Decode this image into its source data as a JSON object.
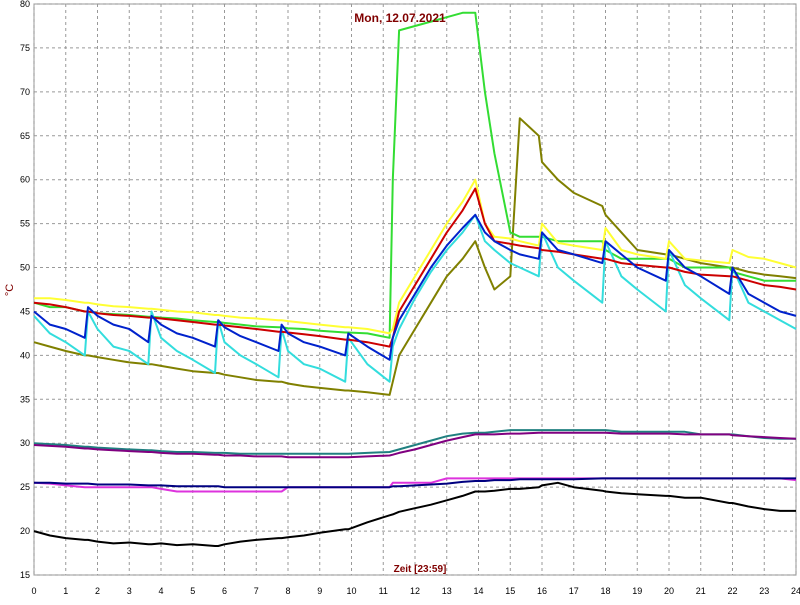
{
  "chart_data": {
    "type": "line",
    "title": "Mon, 12.07.2021",
    "y_label": "°C",
    "x_label": "Zeit [23:59]",
    "xlim": [
      0,
      24
    ],
    "ylim": [
      15,
      80
    ],
    "xticks": [
      0,
      1,
      2,
      3,
      4,
      5,
      6,
      7,
      8,
      9,
      10,
      11,
      12,
      13,
      14,
      15,
      16,
      17,
      18,
      19,
      20,
      21,
      22,
      23,
      24
    ],
    "yticks": [
      15,
      20,
      25,
      30,
      35,
      40,
      45,
      50,
      55,
      60,
      65,
      70,
      75,
      80
    ],
    "grid": true,
    "x": [
      0,
      0.5,
      1,
      1.6,
      1.7,
      2,
      2.5,
      3,
      3.6,
      3.7,
      4,
      4.5,
      5,
      5.7,
      5.8,
      6,
      6.5,
      7,
      7.7,
      7.8,
      8,
      8.5,
      9,
      9.8,
      9.9,
      10.5,
      11.2,
      11.3,
      11.5,
      12,
      12.5,
      13,
      13.5,
      13.9,
      14.2,
      14.5,
      15,
      15.3,
      15.9,
      16.0,
      16.5,
      17,
      17.9,
      18.0,
      18.5,
      19,
      19.9,
      20.0,
      20.5,
      21,
      21.9,
      22.0,
      22.5,
      23,
      23.5,
      24
    ],
    "series": [
      {
        "color": "#208080",
        "values": [
          30,
          29.9,
          29.8,
          29.6,
          29.6,
          29.5,
          29.4,
          29.3,
          29.2,
          29.2,
          29.1,
          29,
          29,
          28.9,
          28.9,
          28.9,
          28.8,
          28.8,
          28.8,
          28.8,
          28.8,
          28.8,
          28.8,
          28.8,
          28.8,
          28.9,
          29,
          29.1,
          29.3,
          29.8,
          30.3,
          30.8,
          31.1,
          31.2,
          31.2,
          31.3,
          31.5,
          31.5,
          31.5,
          31.5,
          31.5,
          31.5,
          31.5,
          31.5,
          31.3,
          31.3,
          31.3,
          31.3,
          31.3,
          31,
          31,
          31,
          30.8,
          30.6,
          30.5,
          30.5
        ]
      },
      {
        "color": "#800080",
        "values": [
          29.8,
          29.7,
          29.6,
          29.4,
          29.4,
          29.3,
          29.2,
          29.1,
          29,
          29,
          28.9,
          28.8,
          28.8,
          28.7,
          28.7,
          28.6,
          28.6,
          28.5,
          28.5,
          28.5,
          28.4,
          28.4,
          28.4,
          28.4,
          28.4,
          28.5,
          28.6,
          28.7,
          28.9,
          29.3,
          29.8,
          30.3,
          30.7,
          31,
          31,
          31,
          31.1,
          31.1,
          31.2,
          31.2,
          31.2,
          31.2,
          31.2,
          31.2,
          31.1,
          31.1,
          31.1,
          31.1,
          31,
          31,
          31,
          30.9,
          30.8,
          30.7,
          30.6,
          30.5
        ]
      },
      {
        "color": "#dd33dd",
        "values": [
          25.5,
          25.4,
          25.2,
          25,
          25,
          25,
          25,
          25,
          25,
          25,
          24.8,
          24.5,
          24.5,
          24.5,
          24.5,
          24.5,
          24.5,
          24.5,
          24.5,
          24.5,
          25,
          25,
          25,
          25,
          25,
          25,
          25,
          25.5,
          25.5,
          25.5,
          25.5,
          26,
          26,
          26,
          26,
          26,
          26,
          26,
          26,
          26,
          26,
          26,
          26,
          26,
          26,
          26,
          26,
          26,
          26,
          26,
          26,
          26,
          26,
          26,
          26,
          25.8
        ]
      },
      {
        "color": "#000080",
        "values": [
          25.5,
          25.5,
          25.4,
          25.4,
          25.4,
          25.3,
          25.3,
          25.3,
          25.2,
          25.2,
          25.2,
          25.1,
          25.1,
          25.1,
          25.1,
          25,
          25,
          25,
          25,
          25,
          25,
          25,
          25,
          25,
          25,
          25,
          25,
          25.1,
          25.1,
          25.2,
          25.3,
          25.4,
          25.6,
          25.7,
          25.7,
          25.8,
          25.8,
          25.9,
          25.9,
          25.9,
          25.9,
          25.9,
          26,
          26,
          26,
          26,
          26,
          26,
          26,
          26,
          26,
          26,
          26,
          26,
          26,
          26
        ]
      },
      {
        "color": "#000000",
        "values": [
          20,
          19.5,
          19.2,
          19,
          19,
          18.8,
          18.6,
          18.7,
          18.5,
          18.5,
          18.6,
          18.4,
          18.5,
          18.3,
          18.3,
          18.5,
          18.8,
          19,
          19.2,
          19.2,
          19.3,
          19.5,
          19.8,
          20.2,
          20.2,
          21,
          21.8,
          21.9,
          22.2,
          22.6,
          23,
          23.5,
          24,
          24.5,
          24.5,
          24.6,
          24.8,
          24.8,
          25,
          25.2,
          25.5,
          25,
          24.6,
          24.5,
          24.3,
          24.2,
          24,
          24,
          23.8,
          23.8,
          23.2,
          23.2,
          22.8,
          22.5,
          22.3,
          22.3
        ]
      },
      {
        "color": "#808000",
        "values": [
          41.5,
          41,
          40.5,
          40,
          40,
          39.8,
          39.5,
          39.2,
          39,
          39,
          38.8,
          38.5,
          38.2,
          38,
          38,
          37.8,
          37.5,
          37.2,
          37,
          37,
          36.8,
          36.5,
          36.3,
          36,
          36,
          35.8,
          35.5,
          37,
          40,
          43,
          46,
          49,
          51,
          53,
          50,
          47.5,
          49,
          67,
          65,
          62,
          60,
          58.5,
          57,
          56,
          54,
          52,
          51.5,
          51.5,
          51,
          50.5,
          50,
          50,
          49.5,
          49.2,
          49,
          48.8
        ]
      },
      {
        "color": "#33dd33",
        "values": [
          46,
          45.5,
          45.5,
          45,
          45,
          44.8,
          44.7,
          44.6,
          44.4,
          44.4,
          44.3,
          44.2,
          44,
          43.8,
          43.8,
          43.7,
          43.5,
          43.3,
          43.2,
          43.2,
          43.1,
          43,
          42.8,
          42.6,
          42.6,
          42.5,
          42,
          60,
          77,
          77.5,
          78,
          78.5,
          79,
          79,
          70,
          63,
          54,
          53.5,
          53.5,
          53.5,
          53,
          53,
          53,
          52,
          51,
          51,
          51,
          51,
          50,
          50,
          50,
          49.5,
          49,
          48.5,
          48.5,
          48.5
        ]
      },
      {
        "color": "#ffff33",
        "values": [
          46.5,
          46.5,
          46.3,
          46,
          46,
          45.8,
          45.6,
          45.5,
          45.3,
          45.3,
          45.2,
          45,
          44.9,
          44.6,
          44.6,
          44.5,
          44.3,
          44.2,
          44,
          44,
          43.9,
          43.7,
          43.5,
          43.2,
          43.2,
          43,
          42.5,
          43,
          46,
          49,
          52,
          55,
          57.5,
          60,
          55,
          53.5,
          53.3,
          53,
          52.5,
          55,
          52.8,
          52.5,
          52,
          54.5,
          52,
          51.5,
          51,
          53,
          51,
          50.8,
          50.5,
          52,
          51.2,
          51,
          50.5,
          50
        ]
      },
      {
        "color": "#33dddd",
        "values": [
          44.5,
          42.5,
          41.5,
          40,
          45,
          43,
          41,
          40.5,
          39,
          45,
          42,
          40.5,
          39.5,
          38,
          44,
          41.5,
          40,
          39,
          37.5,
          43,
          40.5,
          39,
          38.5,
          37,
          42,
          39,
          37,
          41,
          43,
          46.5,
          49.5,
          52,
          54,
          56,
          53,
          52,
          50.5,
          50,
          49,
          54,
          50,
          48.5,
          46,
          53,
          49,
          47.5,
          45,
          52,
          48,
          46.5,
          44,
          50,
          46,
          45,
          44,
          43
        ]
      },
      {
        "color": "#cc0000",
        "values": [
          46,
          45.8,
          45.5,
          45,
          45,
          44.8,
          44.6,
          44.5,
          44.3,
          44.3,
          44.2,
          44,
          43.8,
          43.5,
          43.5,
          43.4,
          43.2,
          43,
          42.7,
          42.7,
          42.6,
          42.4,
          42.2,
          41.8,
          41.8,
          41.5,
          41,
          42,
          45,
          48,
          51,
          54,
          56.5,
          59,
          55,
          53,
          52.7,
          52.5,
          52.2,
          52,
          51.8,
          51.5,
          51,
          51,
          50.5,
          50.3,
          50,
          50,
          49.5,
          49.2,
          49,
          49,
          48.5,
          48,
          47.8,
          47.5
        ]
      },
      {
        "color": "#0022cc",
        "values": [
          45,
          43.5,
          43,
          42,
          45.5,
          44.5,
          43.5,
          43,
          41.5,
          44.5,
          43.5,
          42.5,
          42,
          41,
          44,
          43.2,
          42.2,
          41.5,
          40.5,
          43.5,
          42.5,
          41.5,
          41,
          40,
          42.5,
          41,
          39.5,
          42,
          44,
          47,
          50,
          52.5,
          54.5,
          56,
          54,
          53,
          52,
          51.5,
          51,
          54,
          52,
          51.5,
          50.5,
          53,
          51.5,
          50,
          48.5,
          52,
          50,
          49,
          47,
          50,
          47,
          46,
          45,
          44.5
        ]
      }
    ]
  }
}
